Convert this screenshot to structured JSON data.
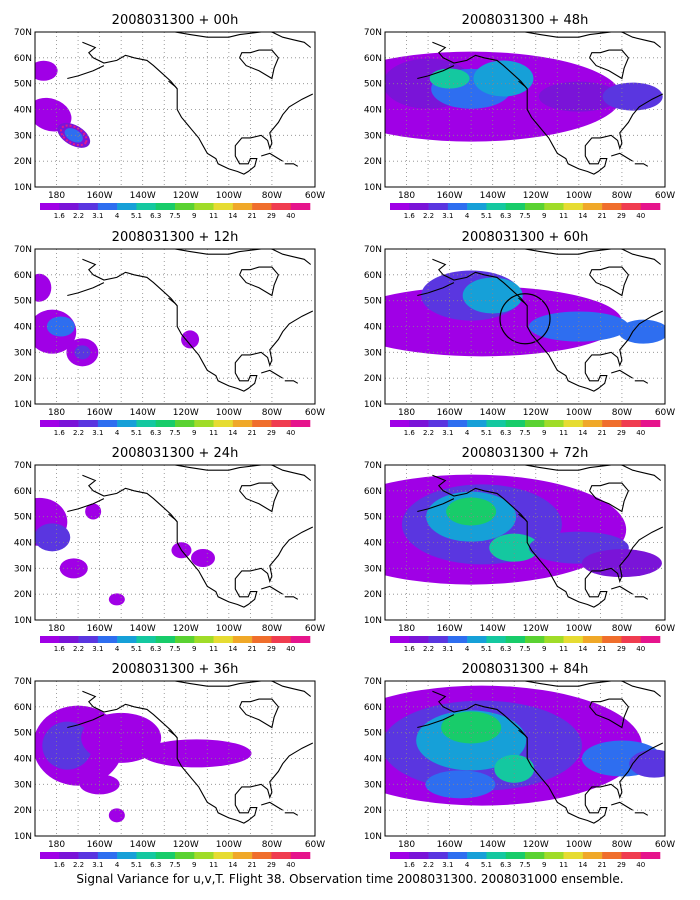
{
  "caption": "Signal Variance for u,v,T. Flight 38. Observation time 2008031300. 2008031000 ensemble.",
  "lat_labels": [
    "70N",
    "60N",
    "50N",
    "40N",
    "30N",
    "20N",
    "10N"
  ],
  "lon_labels": [
    "180",
    "160W",
    "140W",
    "120W",
    "100W",
    "80W",
    "60W"
  ],
  "colorbar": {
    "labels": [
      "1.6",
      "2.2",
      "3.1",
      "4",
      "5.1",
      "6.3",
      "7.5",
      "9",
      "11",
      "14",
      "21",
      "29",
      "40"
    ],
    "colors": [
      "#a000e6",
      "#7a14d8",
      "#5a36e0",
      "#2e6ef0",
      "#16a0d8",
      "#14c8a0",
      "#18cc6a",
      "#5ad232",
      "#a0dc28",
      "#e6dc32",
      "#f0a828",
      "#f06e2c",
      "#f03c50",
      "#e6148c"
    ]
  },
  "panels": [
    {
      "title": "2008031300 + 00h",
      "intensity": 1
    },
    {
      "title": "2008031300 + 48h",
      "intensity": 3
    },
    {
      "title": "2008031300 + 12h",
      "intensity": 1
    },
    {
      "title": "2008031300 + 60h",
      "intensity": 3
    },
    {
      "title": "2008031300 + 24h",
      "intensity": 2
    },
    {
      "title": "2008031300 + 72h",
      "intensity": 4
    },
    {
      "title": "2008031300 + 36h",
      "intensity": 2
    },
    {
      "title": "2008031300 + 84h",
      "intensity": 5
    }
  ]
}
